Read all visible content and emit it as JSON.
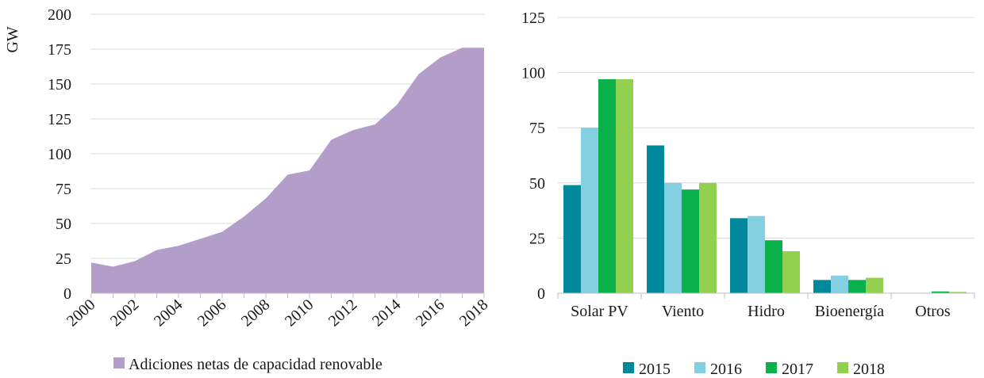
{
  "chart_data": [
    {
      "type": "area",
      "title": "",
      "xlabel": "",
      "ylabel": "GW",
      "ylim": [
        0,
        200
      ],
      "yticks": [
        "0",
        "25",
        "50",
        "75",
        "100",
        "125",
        "150",
        "175",
        "200"
      ],
      "x": [
        2000,
        2001,
        2002,
        2003,
        2004,
        2005,
        2006,
        2007,
        2008,
        2009,
        2010,
        2011,
        2012,
        2013,
        2014,
        2015,
        2016,
        2017,
        2018
      ],
      "xtick_labels": [
        "2000",
        "2002",
        "2004",
        "2006",
        "2008",
        "2010",
        "2012",
        "2014",
        "2016",
        "2018"
      ],
      "series": [
        {
          "name": "Adiciones netas de capacidad renovable",
          "color": "#b39dc9",
          "values": [
            22,
            19,
            23,
            31,
            34,
            39,
            44,
            55,
            68,
            85,
            88,
            110,
            117,
            121,
            135,
            157,
            169,
            176,
            176
          ]
        }
      ],
      "legend": "bottom",
      "grid": true
    },
    {
      "type": "bar",
      "title": "",
      "xlabel": "",
      "ylabel": "",
      "ylim": [
        0,
        125
      ],
      "yticks": [
        "0",
        "25",
        "50",
        "75",
        "100",
        "125"
      ],
      "categories": [
        "Solar PV",
        "Viento",
        "Hidro",
        "Bioenergía",
        "Otros"
      ],
      "series": [
        {
          "name": "2015",
          "color": "#00889c",
          "values": [
            49,
            67,
            34,
            6,
            0
          ]
        },
        {
          "name": "2016",
          "color": "#84cfe0",
          "values": [
            75,
            50,
            35,
            8,
            0
          ]
        },
        {
          "name": "2017",
          "color": "#0ab04a",
          "values": [
            97,
            47,
            24,
            6,
            0.8
          ]
        },
        {
          "name": "2018",
          "color": "#92d050",
          "values": [
            97,
            50,
            19,
            7,
            0.6
          ]
        }
      ],
      "legend": "bottom",
      "grid": true
    }
  ]
}
